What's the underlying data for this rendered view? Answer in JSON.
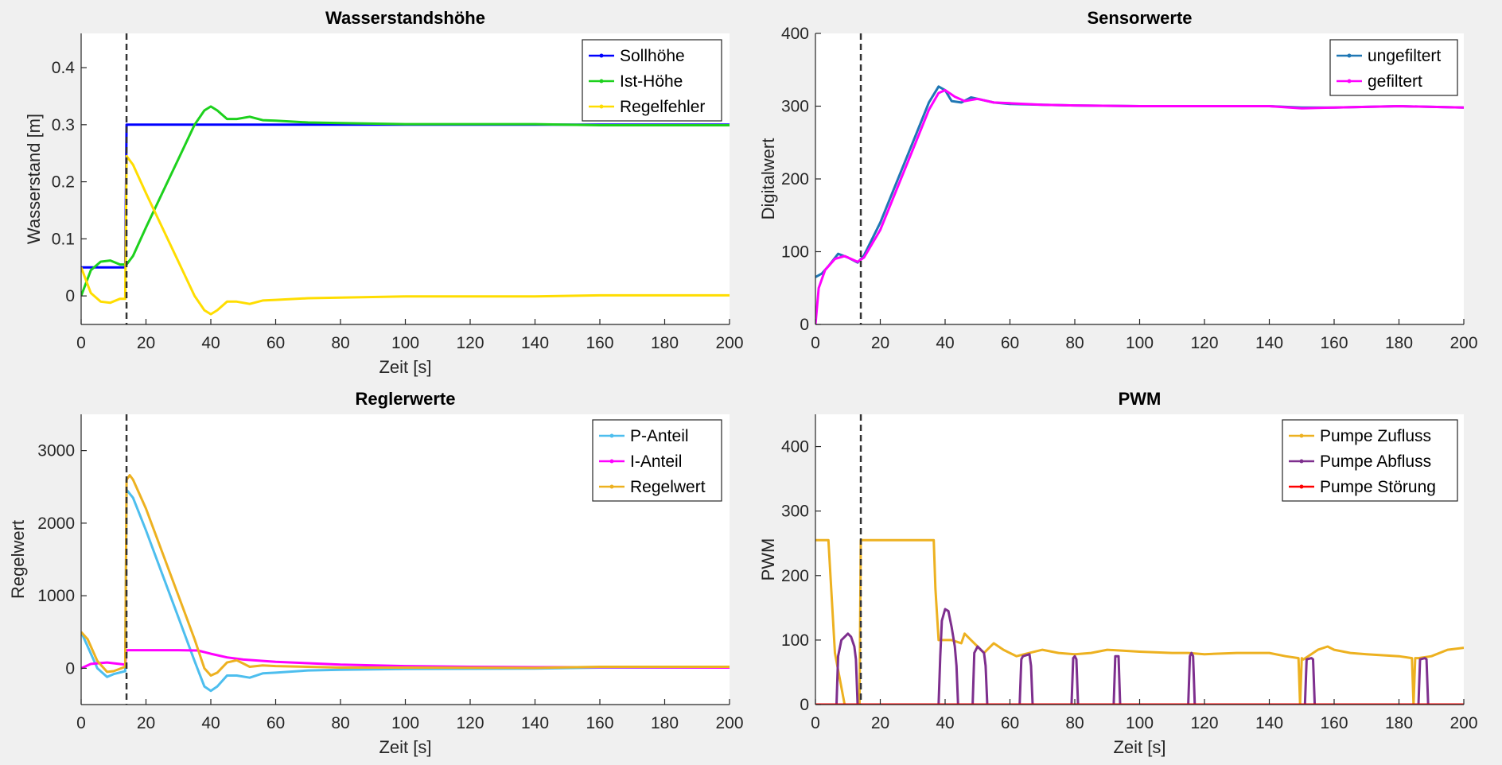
{
  "chart_data": [
    {
      "type": "line",
      "title": "Wasserstandshöhe",
      "xlabel": "Zeit [s]",
      "ylabel": "Wasserstand [m]",
      "xlim": [
        0,
        200
      ],
      "ylim": [
        -0.05,
        0.46
      ],
      "xticks": [
        0,
        20,
        40,
        60,
        80,
        100,
        120,
        140,
        160,
        180,
        200
      ],
      "yticks": [
        0,
        0.1,
        0.2,
        0.3,
        0.4
      ],
      "ytick_labels": [
        "0",
        "0.1",
        "0.2",
        "0.3",
        "0.4"
      ],
      "vline_x": 14,
      "legend_position": "top-right",
      "series": [
        {
          "name": "Sollhöhe",
          "color": "#0000ff",
          "x": [
            0,
            13.6,
            14,
            200
          ],
          "y": [
            0.05,
            0.05,
            0.3,
            0.3
          ]
        },
        {
          "name": "Ist-Höhe",
          "color": "#1dd11d",
          "x": [
            0,
            3,
            6,
            9,
            12,
            14,
            16,
            20,
            25,
            30,
            35,
            38,
            40,
            42,
            45,
            48,
            52,
            56,
            60,
            70,
            80,
            100,
            140,
            160,
            200
          ],
          "y": [
            0.0,
            0.045,
            0.06,
            0.062,
            0.055,
            0.055,
            0.07,
            0.12,
            0.18,
            0.24,
            0.3,
            0.325,
            0.332,
            0.325,
            0.31,
            0.31,
            0.314,
            0.308,
            0.307,
            0.304,
            0.303,
            0.301,
            0.301,
            0.299,
            0.299
          ]
        },
        {
          "name": "Regelfehler",
          "color": "#ffdd00",
          "x": [
            0,
            3,
            6,
            9,
            12,
            13.6,
            14,
            16,
            20,
            25,
            30,
            35,
            38,
            40,
            42,
            45,
            48,
            52,
            56,
            60,
            70,
            80,
            100,
            140,
            160,
            200
          ],
          "y": [
            0.05,
            0.005,
            -0.01,
            -0.012,
            -0.005,
            -0.005,
            0.245,
            0.23,
            0.18,
            0.12,
            0.06,
            0.0,
            -0.025,
            -0.032,
            -0.025,
            -0.01,
            -0.01,
            -0.014,
            -0.008,
            -0.007,
            -0.004,
            -0.003,
            -0.001,
            -0.001,
            0.001,
            0.001
          ]
        }
      ]
    },
    {
      "type": "line",
      "title": "Sensorwerte",
      "xlabel": "",
      "ylabel": "Digitalwert",
      "xlim": [
        0,
        200
      ],
      "ylim": [
        0,
        400
      ],
      "xticks": [
        0,
        20,
        40,
        60,
        80,
        100,
        120,
        140,
        160,
        180,
        200
      ],
      "yticks": [
        0,
        100,
        200,
        300,
        400
      ],
      "ytick_labels": [
        "0",
        "100",
        "200",
        "300",
        "400"
      ],
      "vline_x": 14,
      "legend_position": "top-right",
      "series": [
        {
          "name": "ungefiltert",
          "color": "#1f77b4",
          "x": [
            0,
            2,
            4,
            7,
            10,
            13,
            15,
            20,
            25,
            30,
            35,
            38,
            40,
            42,
            45,
            48,
            50,
            55,
            60,
            70,
            80,
            100,
            120,
            140,
            150,
            160,
            180,
            200
          ],
          "y": [
            65,
            70,
            80,
            97,
            92,
            85,
            95,
            140,
            195,
            250,
            305,
            327,
            322,
            307,
            305,
            312,
            310,
            305,
            303,
            302,
            301,
            300,
            300,
            300,
            298,
            298,
            300,
            298
          ]
        },
        {
          "name": "gefiltert",
          "color": "#ff00ff",
          "x": [
            0,
            1,
            3,
            6,
            9,
            13,
            15,
            20,
            25,
            30,
            35,
            38,
            40,
            43,
            46,
            50,
            55,
            60,
            70,
            80,
            100,
            120,
            140,
            150,
            160,
            180,
            200
          ],
          "y": [
            0,
            50,
            75,
            90,
            94,
            86,
            92,
            130,
            185,
            240,
            295,
            318,
            322,
            313,
            307,
            310,
            305,
            304,
            302,
            301,
            300,
            300,
            300,
            297,
            298,
            300,
            298
          ]
        }
      ]
    },
    {
      "type": "line",
      "title": "Reglerwerte",
      "xlabel": "Zeit [s]",
      "ylabel": "Regelwert",
      "xlim": [
        0,
        200
      ],
      "ylim": [
        -500,
        3500
      ],
      "xticks": [
        0,
        20,
        40,
        60,
        80,
        100,
        120,
        140,
        160,
        180,
        200
      ],
      "yticks": [
        0,
        1000,
        2000,
        3000
      ],
      "ytick_labels": [
        "0",
        "1000",
        "2000",
        "3000"
      ],
      "vline_x": 14,
      "legend_position": "top-right",
      "series": [
        {
          "name": "P-Anteil",
          "color": "#4dbeee",
          "x": [
            0,
            2,
            5,
            8,
            10,
            13.6,
            14,
            16,
            20,
            25,
            30,
            35,
            38,
            40,
            42,
            45,
            48,
            52,
            56,
            60,
            70,
            80,
            100,
            140,
            160,
            200
          ],
          "y": [
            500,
            300,
            0,
            -120,
            -80,
            -40,
            2460,
            2350,
            1900,
            1300,
            700,
            100,
            -250,
            -310,
            -250,
            -100,
            -100,
            -130,
            -70,
            -60,
            -30,
            -20,
            -10,
            -5,
            10,
            10
          ]
        },
        {
          "name": "I-Anteil",
          "color": "#ff00ff",
          "x": [
            0,
            3,
            8,
            13.6,
            14,
            16,
            20,
            30,
            36,
            40,
            45,
            50,
            60,
            70,
            80,
            100,
            120,
            140,
            160,
            200
          ],
          "y": [
            0,
            60,
            80,
            50,
            250,
            250,
            250,
            250,
            245,
            200,
            150,
            120,
            90,
            70,
            50,
            30,
            20,
            15,
            15,
            10
          ]
        },
        {
          "name": "Regelwert",
          "color": "#edb120",
          "x": [
            0,
            2,
            5,
            8,
            10,
            13.6,
            14,
            15,
            16,
            20,
            25,
            30,
            35,
            38,
            40,
            42,
            45,
            48,
            52,
            56,
            60,
            70,
            80,
            100,
            140,
            160,
            200
          ],
          "y": [
            500,
            400,
            100,
            -50,
            -40,
            20,
            2600,
            2660,
            2600,
            2200,
            1600,
            1000,
            400,
            0,
            -100,
            -60,
            80,
            110,
            20,
            40,
            30,
            20,
            10,
            10,
            5,
            20,
            20
          ]
        }
      ]
    },
    {
      "type": "line",
      "title": "PWM",
      "xlabel": "Zeit [s]",
      "ylabel": "PWM",
      "xlim": [
        0,
        200
      ],
      "ylim": [
        0,
        450
      ],
      "xticks": [
        0,
        20,
        40,
        60,
        80,
        100,
        120,
        140,
        160,
        180,
        200
      ],
      "yticks": [
        0,
        100,
        200,
        300,
        400
      ],
      "ytick_labels": [
        "0",
        "100",
        "200",
        "300",
        "400"
      ],
      "vline_x": 14,
      "legend_position": "top-right",
      "series": [
        {
          "name": "Pumpe Zufluss",
          "color": "#edb120",
          "x": [
            0,
            4,
            6,
            9,
            12,
            13,
            13.6,
            14,
            20,
            30,
            36.5,
            37,
            38,
            42,
            45,
            46,
            48,
            50,
            52,
            55,
            58,
            62,
            66,
            70,
            75,
            80,
            85,
            90,
            100,
            110,
            115,
            120,
            130,
            140,
            145,
            149,
            149.5,
            150,
            150.5,
            152,
            155,
            158,
            160,
            165,
            170,
            180,
            184,
            184.5,
            185,
            186,
            190,
            195,
            200
          ],
          "y": [
            255,
            255,
            80,
            0,
            0,
            0,
            0,
            255,
            255,
            255,
            255,
            180,
            100,
            100,
            95,
            110,
            100,
            90,
            80,
            95,
            85,
            75,
            80,
            85,
            80,
            78,
            80,
            85,
            82,
            80,
            80,
            78,
            80,
            80,
            75,
            72,
            0,
            72,
            70,
            75,
            85,
            90,
            85,
            80,
            78,
            75,
            72,
            0,
            72,
            72,
            75,
            85,
            88
          ]
        },
        {
          "name": "Pumpe Abfluss",
          "color": "#7e2f8e",
          "x": [
            0,
            6.5,
            7,
            8,
            10,
            11,
            12,
            12.5,
            13,
            14,
            38,
            38.5,
            39,
            40,
            41,
            42,
            43,
            43.5,
            44,
            45,
            48.5,
            49,
            50,
            51,
            52,
            52.5,
            53,
            63,
            63.5,
            64,
            66,
            66.5,
            67,
            79,
            79.5,
            80,
            80.5,
            81,
            92,
            92.5,
            93.5,
            94,
            115,
            115.5,
            116,
            116.5,
            117,
            151,
            151.5,
            153,
            153.5,
            154,
            186,
            186.5,
            188,
            188.5,
            189,
            200
          ],
          "y": [
            0,
            0,
            75,
            100,
            110,
            105,
            90,
            70,
            0,
            0,
            0,
            75,
            130,
            148,
            145,
            120,
            90,
            60,
            0,
            0,
            0,
            80,
            90,
            85,
            80,
            60,
            0,
            0,
            70,
            75,
            78,
            60,
            0,
            0,
            72,
            75,
            70,
            0,
            0,
            75,
            75,
            0,
            0,
            75,
            80,
            75,
            0,
            0,
            70,
            72,
            70,
            0,
            0,
            70,
            72,
            70,
            0,
            0
          ]
        },
        {
          "name": "Pumpe Störung",
          "color": "#ff0000",
          "x": [
            0,
            200
          ],
          "y": [
            0,
            0
          ]
        }
      ]
    }
  ],
  "vline_color": "#333333",
  "panel_bg": "#ffffff",
  "axis_color": "#262626"
}
